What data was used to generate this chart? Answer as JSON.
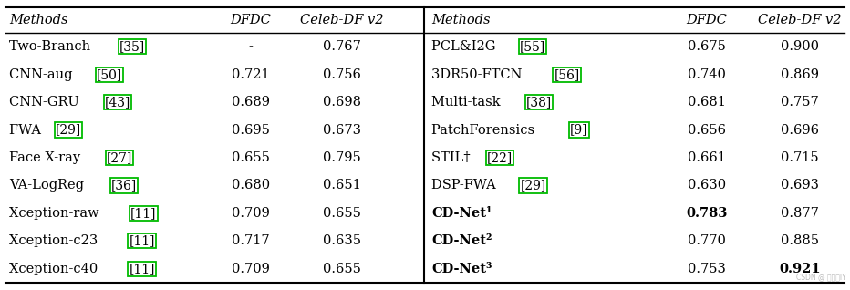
{
  "left_rows": [
    {
      "base": "Two-Branch ",
      "ref": "35",
      "dfdc": "-",
      "celeb": "0.767"
    },
    {
      "base": "CNN-aug ",
      "ref": "50",
      "dfdc": "0.721",
      "celeb": "0.756"
    },
    {
      "base": "CNN-GRU ",
      "ref": "43",
      "dfdc": "0.689",
      "celeb": "0.698"
    },
    {
      "base": "FWA ",
      "ref": "29",
      "dfdc": "0.695",
      "celeb": "0.673"
    },
    {
      "base": "Face X-ray ",
      "ref": "27",
      "dfdc": "0.655",
      "celeb": "0.795"
    },
    {
      "base": "VA-LogReg ",
      "ref": "36",
      "dfdc": "0.680",
      "celeb": "0.651"
    },
    {
      "base": "Xception-raw ",
      "ref": "11",
      "dfdc": "0.709",
      "celeb": "0.655"
    },
    {
      "base": "Xception-c23 ",
      "ref": "11",
      "dfdc": "0.717",
      "celeb": "0.635"
    },
    {
      "base": "Xception-c40 ",
      "ref": "11",
      "dfdc": "0.709",
      "celeb": "0.655"
    }
  ],
  "right_rows": [
    {
      "base": "PCL&I2G ",
      "ref": "55",
      "dfdc": "0.675",
      "celeb": "0.900",
      "bold": false,
      "bold_dfdc": false,
      "bold_celeb": false
    },
    {
      "base": "3DR50-FTCN ",
      "ref": "56",
      "dfdc": "0.740",
      "celeb": "0.869",
      "bold": false,
      "bold_dfdc": false,
      "bold_celeb": false
    },
    {
      "base": "Multi-task ",
      "ref": "38",
      "dfdc": "0.681",
      "celeb": "0.757",
      "bold": false,
      "bold_dfdc": false,
      "bold_celeb": false
    },
    {
      "base": "PatchForensics ",
      "ref": "9",
      "dfdc": "0.656",
      "celeb": "0.696",
      "bold": false,
      "bold_dfdc": false,
      "bold_celeb": false
    },
    {
      "base": "STIL† ",
      "ref": "22",
      "dfdc": "0.661",
      "celeb": "0.715",
      "bold": false,
      "bold_dfdc": false,
      "bold_celeb": false
    },
    {
      "base": "DSP-FWA ",
      "ref": "29",
      "dfdc": "0.630",
      "celeb": "0.693",
      "bold": false,
      "bold_dfdc": false,
      "bold_celeb": false
    },
    {
      "base": "CD-Net¹",
      "ref": "",
      "dfdc": "0.783",
      "celeb": "0.877",
      "bold": true,
      "bold_dfdc": true,
      "bold_celeb": false
    },
    {
      "base": "CD-Net²",
      "ref": "",
      "dfdc": "0.770",
      "celeb": "0.885",
      "bold": true,
      "bold_dfdc": false,
      "bold_celeb": false
    },
    {
      "base": "CD-Net³",
      "ref": "",
      "dfdc": "0.753",
      "celeb": "0.921",
      "bold": true,
      "bold_dfdc": false,
      "bold_celeb": true
    }
  ],
  "bg_color": "#ffffff",
  "line_color": "#000000",
  "ref_box_color": "#00bb00",
  "fig_width": 9.32,
  "fig_height": 3.18,
  "dpi": 100
}
